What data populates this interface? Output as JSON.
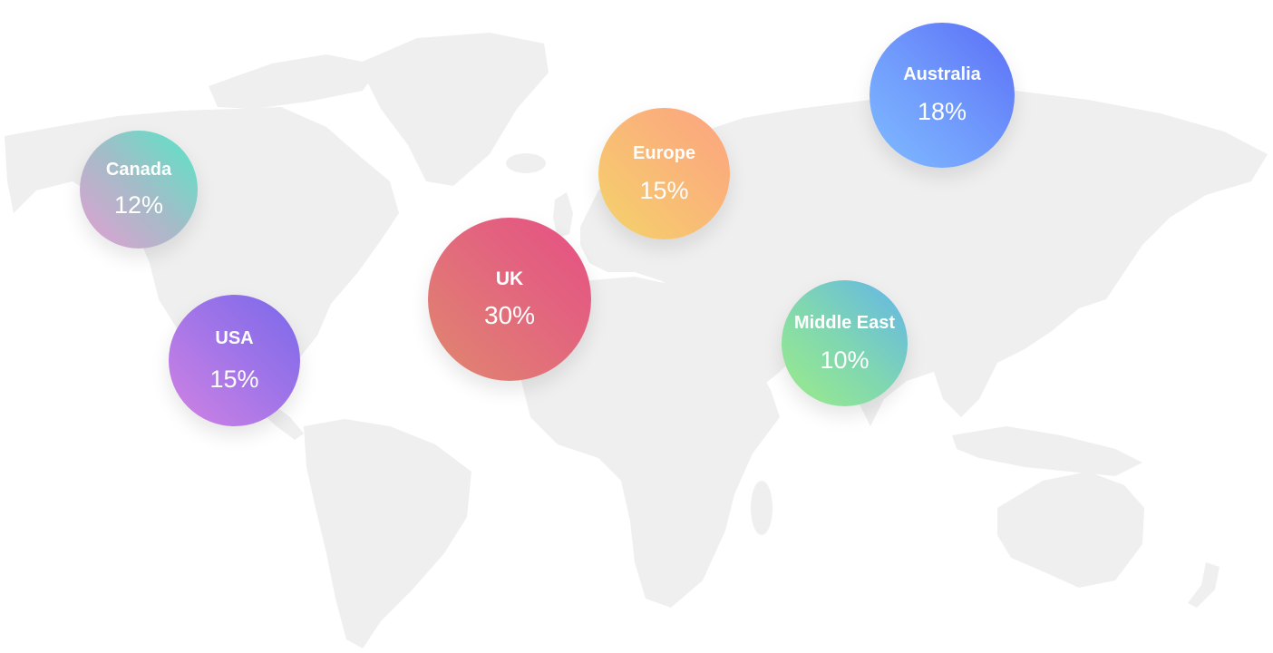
{
  "regions": [
    {
      "name": "Canada",
      "value": "12%",
      "gradient": [
        "#55e7c5",
        "#e39ed2"
      ]
    },
    {
      "name": "USA",
      "value": "15%",
      "gradient": [
        "#d283e3",
        "#7a68ea"
      ]
    },
    {
      "name": "UK",
      "value": "30%",
      "gradient": [
        "#e0886e",
        "#e54f84"
      ]
    },
    {
      "name": "Europe",
      "value": "15%",
      "gradient": [
        "#f5d36a",
        "#fda380"
      ]
    },
    {
      "name": "Middle East",
      "value": "10%",
      "gradient": [
        "#9cec88",
        "#62b4ea"
      ]
    },
    {
      "name": "Australia",
      "value": "18%",
      "gradient": [
        "#7fbcff",
        "#5c6ef6"
      ]
    }
  ],
  "map_color": "#efefef"
}
